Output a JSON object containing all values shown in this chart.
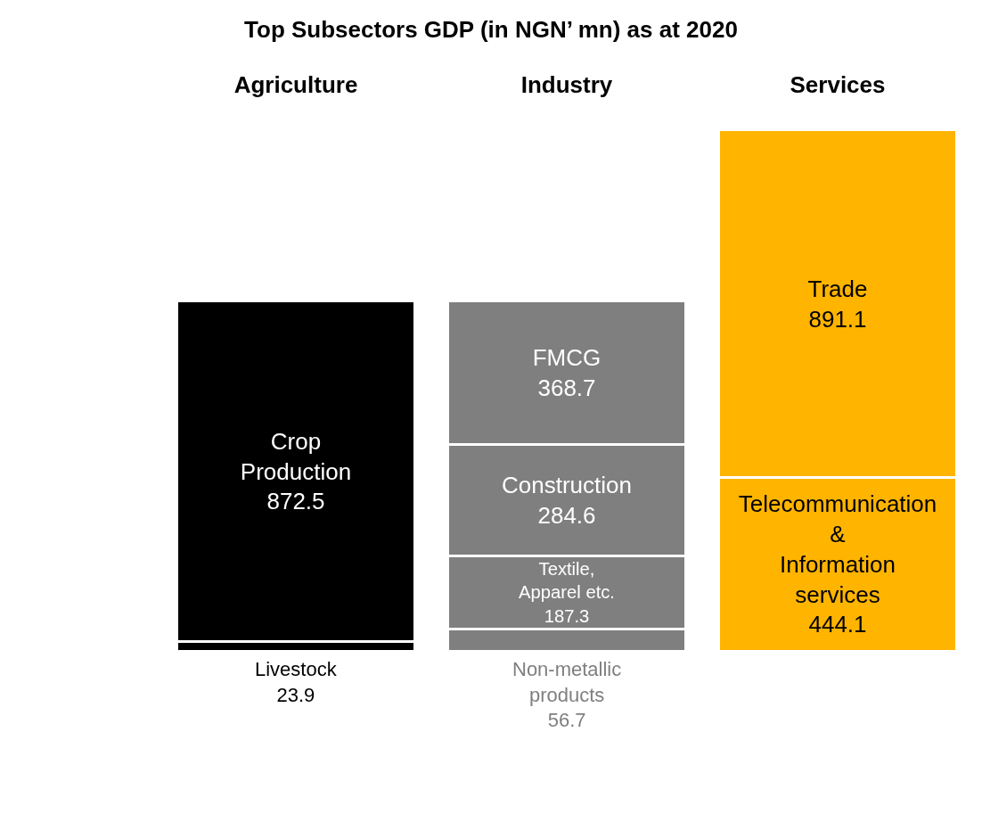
{
  "chart_data": {
    "type": "bar",
    "stacked": true,
    "title": "Top Subsectors GDP (in NGN’ mn) as at 2020",
    "categories": [
      "Agriculture",
      "Industry",
      "Services"
    ],
    "series": [
      {
        "name": "Livestock",
        "color": "#000000",
        "values": [
          23.9,
          null,
          null
        ]
      },
      {
        "name": "Crop Production",
        "color": "#000000",
        "values": [
          872.5,
          null,
          null
        ]
      },
      {
        "name": "Non-metallic products",
        "color": "#7f7f7f",
        "values": [
          null,
          56.7,
          null
        ]
      },
      {
        "name": "Textile, Apparel etc.",
        "color": "#7f7f7f",
        "values": [
          null,
          187.3,
          null
        ]
      },
      {
        "name": "Construction",
        "color": "#7f7f7f",
        "values": [
          null,
          284.6,
          null
        ]
      },
      {
        "name": "FMCG",
        "color": "#7f7f7f",
        "values": [
          null,
          368.7,
          null
        ]
      },
      {
        "name": "Telecommunication & Information services",
        "color": "#ffb400",
        "values": [
          null,
          null,
          444.1
        ]
      },
      {
        "name": "Trade",
        "color": "#ffb400",
        "values": [
          null,
          null,
          891.1
        ]
      }
    ],
    "data_labels": true,
    "legend": false,
    "grid": false
  }
}
